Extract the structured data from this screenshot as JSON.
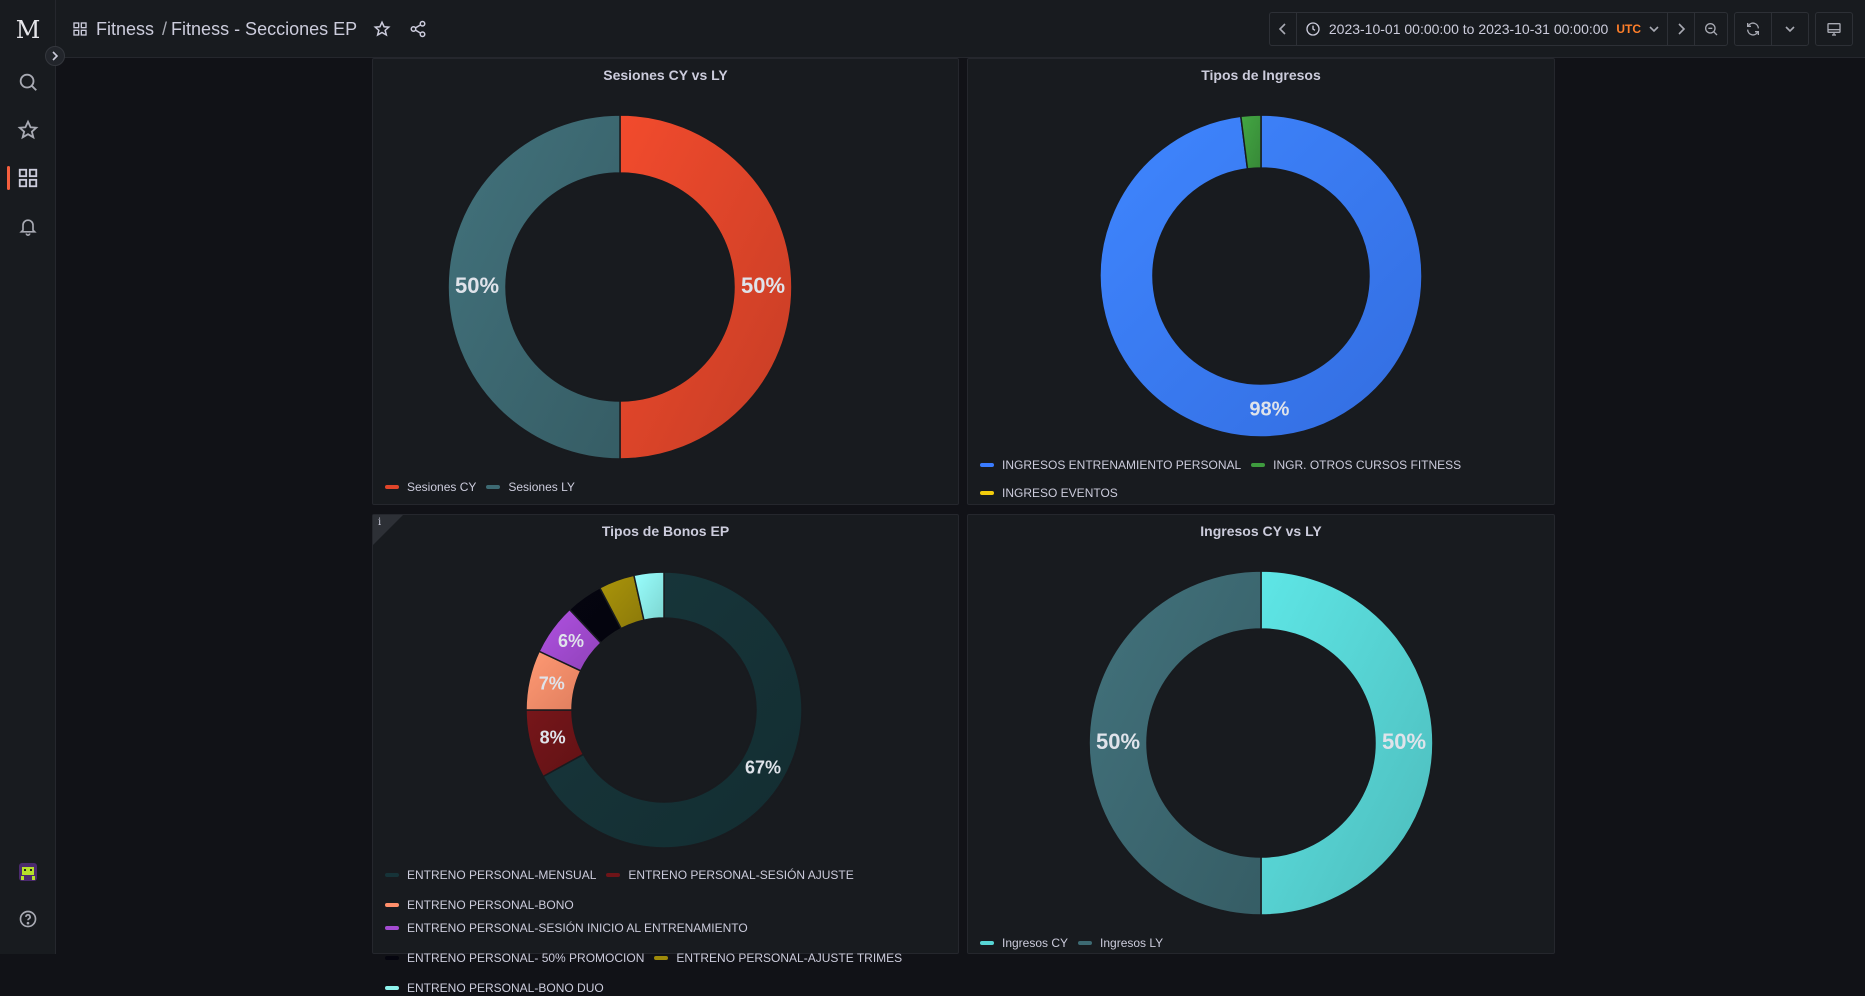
{
  "nav": {
    "logo": "M",
    "items": [
      {
        "name": "search-icon"
      },
      {
        "name": "star-icon"
      },
      {
        "name": "dashboards-icon"
      },
      {
        "name": "bell-icon"
      }
    ]
  },
  "header": {
    "breadcrumb_root": "Fitness",
    "breadcrumb_sep": "/",
    "breadcrumb_current": "Fitness - Secciones EP",
    "time_range": "2023-10-01 00:00:00 to 2023-10-31 00:00:00",
    "timezone": "UTC"
  },
  "chart_data": [
    {
      "type": "pie",
      "title": "Sesiones CY vs LY",
      "series": [
        {
          "name": "Sesiones CY",
          "value": 50,
          "label": "50%",
          "color": "#e0452a"
        },
        {
          "name": "Sesiones LY",
          "value": 50,
          "label": "50%",
          "color": "#3d6a73"
        }
      ]
    },
    {
      "type": "pie",
      "title": "Tipos de Ingresos",
      "series": [
        {
          "name": "INGRESOS ENTRENAMIENTO PERSONAL",
          "value": 98,
          "label": "98%",
          "color": "#3a7cff"
        },
        {
          "name": "INGR. OTROS CURSOS FITNESS",
          "value": 2,
          "label": "",
          "color": "#3e9b3e"
        },
        {
          "name": "INGRESO EVENTOS",
          "value": 0.0,
          "label": "",
          "color": "#f2cc0c"
        }
      ]
    },
    {
      "type": "pie",
      "title": "Tipos de Bonos EP",
      "series": [
        {
          "name": "ENTRENO PERSONAL-MENSUAL",
          "value": 67,
          "label": "67%",
          "color": "#163338"
        },
        {
          "name": "ENTRENO PERSONAL-SESIÓN AJUSTE",
          "value": 8,
          "label": "8%",
          "color": "#6e1418"
        },
        {
          "name": "ENTRENO PERSONAL-BONO",
          "value": 7,
          "label": "7%",
          "color": "#ff8f6b"
        },
        {
          "name": "ENTRENO PERSONAL-SESIÓN INICIO AL ENTRENAMIENTO",
          "value": 6,
          "label": "6%",
          "color": "#a34bd1"
        },
        {
          "name": "ENTRENO PERSONAL- 50% PROMOCION",
          "value": 4.3,
          "label": "",
          "color": "#05050f"
        },
        {
          "name": "ENTRENO PERSONAL-AJUSTE TRIMES",
          "value": 4.2,
          "label": "",
          "color": "#9e8a0a"
        },
        {
          "name": "ENTRENO PERSONAL-BONO DUO",
          "value": 3.5,
          "label": "",
          "color": "#8ef2ec"
        }
      ]
    },
    {
      "type": "pie",
      "title": "Ingresos CY vs LY",
      "series": [
        {
          "name": "Ingresos CY",
          "value": 50,
          "label": "50%",
          "color": "#57d5d5"
        },
        {
          "name": "Ingresos LY",
          "value": 50,
          "label": "50%",
          "color": "#3d6a73"
        }
      ]
    }
  ]
}
